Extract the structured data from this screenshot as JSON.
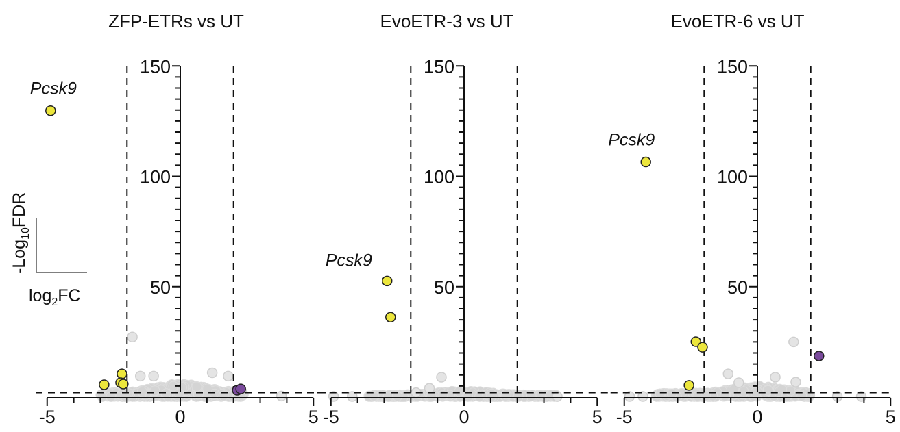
{
  "chart_data": {
    "type": "scatter",
    "subtype": "volcano",
    "xlabel": "log2FC",
    "ylabel": "-Log10FDR",
    "axis_legend": {
      "y_text": "-Log",
      "y_sub": "10",
      "y_suffix": "FDR",
      "x_text": "log",
      "x_sub": "2",
      "x_suffix": "FC"
    },
    "xlim": [
      -5,
      5
    ],
    "ylim": [
      0,
      150
    ],
    "xticks_major": [
      -5,
      0,
      5
    ],
    "xticks_minor_step": 1,
    "yticks_major": [
      50,
      100,
      150
    ],
    "yticks_minor_step": 5,
    "thresholds": {
      "log2fc": [
        -2,
        2
      ],
      "neg_log10_fdr": 2
    },
    "colors": {
      "down": "#ece63c",
      "up": "#7a4a9c",
      "ns": "#cdcdcd",
      "outline": "#222222"
    },
    "panels": [
      {
        "title": "ZFP-ETRs vs UT",
        "highlight_label": "Pcsk9",
        "down": [
          {
            "gene": "Pcsk9",
            "x": -4.87,
            "y": 129.7
          },
          {
            "gene": "",
            "x": -2.86,
            "y": 5.6
          },
          {
            "gene": "",
            "x": -2.19,
            "y": 10.5
          },
          {
            "gene": "",
            "x": -2.24,
            "y": 6.5
          },
          {
            "gene": "",
            "x": -2.14,
            "y": 5.9
          }
        ],
        "up": [
          {
            "gene": "",
            "x": 2.14,
            "y": 3.1
          },
          {
            "gene": "",
            "x": 2.27,
            "y": 3.7
          }
        ],
        "ns_outliers": [
          {
            "x": -1.8,
            "y": 27.2
          },
          {
            "x": -1.5,
            "y": 9.5
          },
          {
            "x": -1.0,
            "y": 9.5
          },
          {
            "x": 1.2,
            "y": 11.0
          },
          {
            "x": 1.8,
            "y": 9.5
          },
          {
            "x": 3.8,
            "y": 0.5
          }
        ],
        "ns_spread": {
          "xmin": -3.0,
          "xmax": 2.4,
          "ymax": 6.0
        }
      },
      {
        "title": "EvoETR-3 vs UT",
        "highlight_label": "Pcsk9",
        "down": [
          {
            "gene": "Pcsk9",
            "x": -2.89,
            "y": 52.6
          },
          {
            "gene": "",
            "x": -2.76,
            "y": 36.2
          }
        ],
        "up": [],
        "ns_outliers": [
          {
            "x": -0.85,
            "y": 9.0
          },
          {
            "x": -1.3,
            "y": 4.0
          },
          {
            "x": -1.8,
            "y": 2.0
          },
          {
            "x": -4.9,
            "y": 0.3
          },
          {
            "x": -4.2,
            "y": 0.3
          },
          {
            "x": 3.5,
            "y": 0.3
          }
        ],
        "ns_spread": {
          "xmin": -3.6,
          "xmax": 3.5,
          "ymax": 3.0
        }
      },
      {
        "title": "EvoETR-6 vs UT",
        "highlight_label": "Pcsk9",
        "down": [
          {
            "gene": "Pcsk9",
            "x": -4.19,
            "y": 106.5
          },
          {
            "gene": "",
            "x": -2.31,
            "y": 25.1
          },
          {
            "gene": "",
            "x": -2.06,
            "y": 22.6
          },
          {
            "gene": "",
            "x": -2.57,
            "y": 5.3
          }
        ],
        "up": [
          {
            "gene": "",
            "x": 2.31,
            "y": 18.6
          }
        ],
        "ns_outliers": [
          {
            "x": 1.36,
            "y": 25.0
          },
          {
            "x": 0.67,
            "y": 9.0
          },
          {
            "x": 1.44,
            "y": 6.8
          },
          {
            "x": -1.1,
            "y": 10.5
          },
          {
            "x": -0.7,
            "y": 6.5
          },
          {
            "x": -4.8,
            "y": 0.3
          },
          {
            "x": -4.3,
            "y": 0.3
          },
          {
            "x": 3.0,
            "y": 0.3
          },
          {
            "x": 3.9,
            "y": 0.3
          }
        ],
        "ns_spread": {
          "xmin": -3.8,
          "xmax": 2.0,
          "ymax": 5.0
        }
      }
    ]
  }
}
